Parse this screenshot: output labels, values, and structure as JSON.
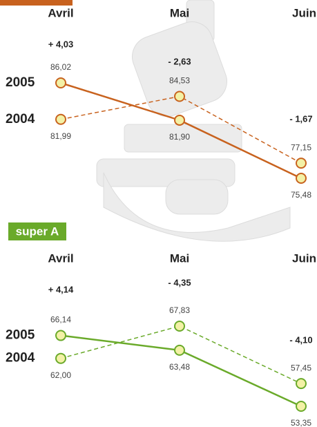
{
  "chart_data": [
    {
      "type": "line",
      "categories": [
        "Avril",
        "Mai",
        "Juin"
      ],
      "annotations": [
        "+ 4,03",
        "- 2,63",
        "- 1,67"
      ],
      "series": [
        {
          "name": "2005",
          "color": "#c8621e",
          "style": "solid",
          "values": [
            86.02,
            81.9,
            75.48
          ],
          "value_labels": [
            "86,02",
            "81,90",
            "75,48"
          ]
        },
        {
          "name": "2004",
          "color": "#c8621e",
          "style": "dashed",
          "values": [
            81.99,
            84.53,
            77.15
          ],
          "value_labels": [
            "81,99",
            "84,53",
            "77,15"
          ]
        }
      ]
    },
    {
      "type": "line",
      "title": "super A",
      "title_color": "#6aaa2a",
      "categories": [
        "Avril",
        "Mai",
        "Juin"
      ],
      "annotations": [
        "+ 4,14",
        "- 4,35",
        "- 4,10"
      ],
      "series": [
        {
          "name": "2005",
          "color": "#6aaa2a",
          "style": "solid",
          "values": [
            66.14,
            63.48,
            53.35
          ],
          "value_labels": [
            "66,14",
            "63,48",
            "53,35"
          ]
        },
        {
          "name": "2004",
          "color": "#6aaa2a",
          "style": "dashed",
          "values": [
            62.0,
            67.83,
            57.45
          ],
          "value_labels": [
            "62,00",
            "67,83",
            "57,45"
          ]
        }
      ]
    }
  ]
}
